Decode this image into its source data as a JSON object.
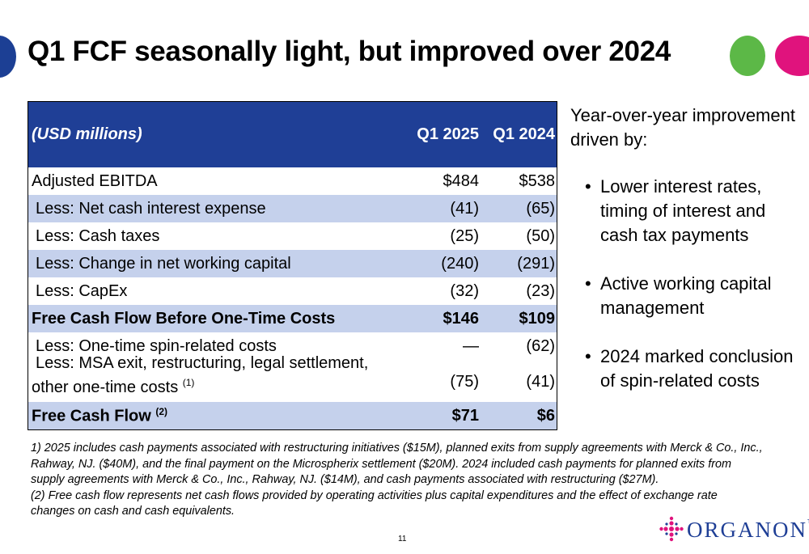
{
  "title": "Q1 FCF seasonally light, but improved over 2024",
  "table": {
    "header": {
      "label": "(USD millions)",
      "col1": "Q1 2025",
      "col2": "Q1 2024"
    },
    "rows": [
      {
        "label": "Adjusted EBITDA",
        "sup": "",
        "v1": "$484",
        "v2": "$538"
      },
      {
        "label": "Less: Net cash interest expense",
        "sup": "",
        "v1": "(41)",
        "v2": "(65)"
      },
      {
        "label": "Less: Cash taxes",
        "sup": "",
        "v1": "(25)",
        "v2": "(50)"
      },
      {
        "label": "Less: Change in net working capital",
        "sup": "",
        "v1": "(240)",
        "v2": "(291)"
      },
      {
        "label": "Less: CapEx",
        "sup": "",
        "v1": "(32)",
        "v2": "(23)"
      },
      {
        "label": "Free Cash Flow Before One-Time Costs",
        "sup": "",
        "v1": "$146",
        "v2": "$109"
      },
      {
        "label": "Less: One-time spin-related costs",
        "sup": "",
        "v1": "—",
        "v2": "(62)"
      },
      {
        "label": "Less: MSA exit, restructuring, legal settlement, other one-time costs",
        "sup": "(1)",
        "v1": "(75)",
        "v2": "(41)"
      },
      {
        "label": "Free Cash Flow",
        "sup": "(2)",
        "v1": "$71",
        "v2": "$6"
      }
    ]
  },
  "sidebar": {
    "intro": "Year-over-year improvement driven by:",
    "bullet_char": "•",
    "bullets": [
      "Lower interest rates, timing of interest and cash tax payments",
      "Active working capital management",
      "2024 marked conclusion of spin-related costs"
    ]
  },
  "footnotes": [
    "1) 2025 includes cash payments associated with restructuring initiatives ($15M), planned exits from supply agreements with Merck & Co., Inc., Rahway, NJ. ($40M), and the final payment on the Microspherix settlement ($20M). 2024 included cash payments for planned exits from supply agreements with Merck & Co., Inc., Rahway, NJ. ($14M), and cash payments associated with restructuring ($27M).",
    "(2) Free cash flow represents net cash flows provided by operating activities plus capital expenditures and the effect of exchange rate changes on cash and cash equivalents."
  ],
  "page_number": "11",
  "logo": {
    "text": "ORGANON",
    "tm": "TM",
    "icon": "organon-cross-icon"
  },
  "colors": {
    "brand_blue": "#1f3f96",
    "row_shade": "#c5d1ec",
    "green": "#5cb847",
    "pink": "#e0137d"
  }
}
